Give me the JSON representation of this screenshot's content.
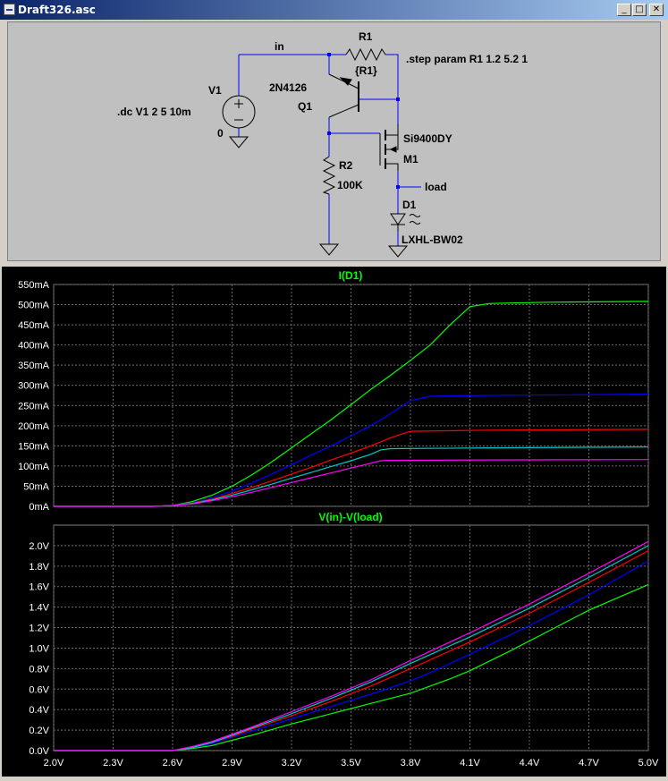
{
  "window": {
    "title": "Draft326.asc",
    "minimize_label": "_",
    "maximize_label": "□",
    "close_label": "✕"
  },
  "schematic": {
    "net_in": "in",
    "net_load": "load",
    "step_directive": ".step param R1 1.2 5.2 1",
    "dc_directive": ".dc V1 2 5 10m",
    "components": {
      "v1": {
        "name": "V1",
        "value": "0"
      },
      "q1": {
        "name": "Q1",
        "model": "2N4126"
      },
      "r1": {
        "name": "R1",
        "value": "{R1}"
      },
      "r2": {
        "name": "R2",
        "value": "100K"
      },
      "m1": {
        "name": "M1",
        "model": "Si9400DY"
      },
      "d1": {
        "name": "D1",
        "model": "LXHL-BW02"
      }
    },
    "colors": {
      "background": "#c0c0c0",
      "wire": "#0000ff",
      "symbol": "#000000"
    }
  },
  "plot_colors": [
    "#00ff00",
    "#0000ff",
    "#ff0000",
    "#00c8c8",
    "#ff00ff"
  ],
  "chart_data": [
    {
      "type": "line",
      "title": "I(D1)",
      "xlabel": "",
      "ylabel": "",
      "xlim": [
        2.0,
        5.0
      ],
      "ylim": [
        0,
        550
      ],
      "grid": true,
      "x_ticks": [
        "2.0V",
        "2.3V",
        "2.6V",
        "2.9V",
        "3.2V",
        "3.5V",
        "3.8V",
        "4.1V",
        "4.4V",
        "4.7V",
        "5.0V"
      ],
      "y_ticks": [
        "0mA",
        "50mA",
        "100mA",
        "150mA",
        "200mA",
        "250mA",
        "300mA",
        "350mA",
        "400mA",
        "450mA",
        "500mA",
        "550mA"
      ],
      "series": [
        {
          "color": "#00ff00",
          "points": [
            [
              2.0,
              0
            ],
            [
              2.5,
              0
            ],
            [
              2.6,
              2
            ],
            [
              2.7,
              12
            ],
            [
              2.8,
              28
            ],
            [
              2.9,
              50
            ],
            [
              3.0,
              78
            ],
            [
              3.1,
              110
            ],
            [
              3.2,
              145
            ],
            [
              3.3,
              180
            ],
            [
              3.4,
              215
            ],
            [
              3.5,
              252
            ],
            [
              3.6,
              290
            ],
            [
              3.7,
              325
            ],
            [
              3.8,
              362
            ],
            [
              3.9,
              400
            ],
            [
              4.0,
              450
            ],
            [
              4.1,
              495
            ],
            [
              4.2,
              503
            ],
            [
              4.5,
              506
            ],
            [
              5.0,
              508
            ]
          ]
        },
        {
          "color": "#0000ff",
          "points": [
            [
              2.0,
              0
            ],
            [
              2.5,
              0
            ],
            [
              2.6,
              2
            ],
            [
              2.7,
              9
            ],
            [
              2.8,
              22
            ],
            [
              2.9,
              38
            ],
            [
              3.0,
              58
            ],
            [
              3.1,
              80
            ],
            [
              3.2,
              103
            ],
            [
              3.3,
              127
            ],
            [
              3.4,
              150
            ],
            [
              3.5,
              175
            ],
            [
              3.6,
              200
            ],
            [
              3.7,
              230
            ],
            [
              3.8,
              262
            ],
            [
              3.9,
              273
            ],
            [
              4.2,
              275
            ],
            [
              5.0,
              278
            ]
          ]
        },
        {
          "color": "#ff0000",
          "points": [
            [
              2.0,
              0
            ],
            [
              2.5,
              0
            ],
            [
              2.6,
              2
            ],
            [
              2.7,
              8
            ],
            [
              2.8,
              18
            ],
            [
              2.9,
              32
            ],
            [
              3.0,
              47
            ],
            [
              3.1,
              63
            ],
            [
              3.2,
              80
            ],
            [
              3.3,
              97
            ],
            [
              3.4,
              115
            ],
            [
              3.5,
              132
            ],
            [
              3.6,
              150
            ],
            [
              3.7,
              170
            ],
            [
              3.8,
              186
            ],
            [
              4.2,
              189
            ],
            [
              5.0,
              191
            ]
          ]
        },
        {
          "color": "#00c8c8",
          "points": [
            [
              2.0,
              0
            ],
            [
              2.5,
              0
            ],
            [
              2.6,
              2
            ],
            [
              2.7,
              7
            ],
            [
              2.8,
              16
            ],
            [
              2.9,
              28
            ],
            [
              3.0,
              41
            ],
            [
              3.1,
              55
            ],
            [
              3.2,
              70
            ],
            [
              3.3,
              84
            ],
            [
              3.4,
              99
            ],
            [
              3.5,
              113
            ],
            [
              3.6,
              129
            ],
            [
              3.65,
              140
            ],
            [
              3.7,
              143
            ],
            [
              4.2,
              145
            ],
            [
              5.0,
              147
            ]
          ]
        },
        {
          "color": "#ff00ff",
          "points": [
            [
              2.0,
              0
            ],
            [
              2.5,
              0
            ],
            [
              2.6,
              2
            ],
            [
              2.7,
              6
            ],
            [
              2.8,
              14
            ],
            [
              2.9,
              24
            ],
            [
              3.0,
              35
            ],
            [
              3.1,
              47
            ],
            [
              3.2,
              59
            ],
            [
              3.3,
              71
            ],
            [
              3.4,
              83
            ],
            [
              3.5,
              95
            ],
            [
              3.6,
              107
            ],
            [
              3.65,
              113
            ],
            [
              3.7,
              114
            ],
            [
              4.2,
              115
            ],
            [
              5.0,
              116
            ]
          ]
        }
      ]
    },
    {
      "type": "line",
      "title": "V(in)-V(load)",
      "xlabel": "",
      "ylabel": "",
      "xlim": [
        2.0,
        5.0
      ],
      "ylim": [
        0.0,
        2.2
      ],
      "grid": true,
      "x_ticks": [
        "2.0V",
        "2.3V",
        "2.6V",
        "2.9V",
        "3.2V",
        "3.5V",
        "3.8V",
        "4.1V",
        "4.4V",
        "4.7V",
        "5.0V"
      ],
      "y_ticks": [
        "0.0V",
        "0.2V",
        "0.4V",
        "0.6V",
        "0.8V",
        "1.0V",
        "1.2V",
        "1.4V",
        "1.6V",
        "1.8V",
        "2.0V"
      ],
      "series": [
        {
          "color": "#00ff00",
          "points": [
            [
              2.0,
              0
            ],
            [
              2.6,
              0
            ],
            [
              2.7,
              0.02
            ],
            [
              2.8,
              0.05
            ],
            [
              2.9,
              0.1
            ],
            [
              3.0,
              0.15
            ],
            [
              3.2,
              0.26
            ],
            [
              3.4,
              0.36
            ],
            [
              3.6,
              0.46
            ],
            [
              3.8,
              0.56
            ],
            [
              4.0,
              0.7
            ],
            [
              4.1,
              0.78
            ],
            [
              4.3,
              0.97
            ],
            [
              4.5,
              1.17
            ],
            [
              4.7,
              1.37
            ],
            [
              5.0,
              1.62
            ]
          ]
        },
        {
          "color": "#0000ff",
          "points": [
            [
              2.0,
              0
            ],
            [
              2.6,
              0
            ],
            [
              2.7,
              0.03
            ],
            [
              2.8,
              0.07
            ],
            [
              2.9,
              0.13
            ],
            [
              3.0,
              0.19
            ],
            [
              3.2,
              0.31
            ],
            [
              3.4,
              0.43
            ],
            [
              3.6,
              0.55
            ],
            [
              3.8,
              0.68
            ],
            [
              3.9,
              0.76
            ],
            [
              4.1,
              0.94
            ],
            [
              4.4,
              1.22
            ],
            [
              4.7,
              1.52
            ],
            [
              5.0,
              1.85
            ]
          ]
        },
        {
          "color": "#ff0000",
          "points": [
            [
              2.0,
              0
            ],
            [
              2.6,
              0
            ],
            [
              2.7,
              0.03
            ],
            [
              2.8,
              0.08
            ],
            [
              2.9,
              0.14
            ],
            [
              3.0,
              0.21
            ],
            [
              3.2,
              0.34
            ],
            [
              3.4,
              0.48
            ],
            [
              3.6,
              0.63
            ],
            [
              3.8,
              0.8
            ],
            [
              4.1,
              1.06
            ],
            [
              4.4,
              1.34
            ],
            [
              4.7,
              1.64
            ],
            [
              5.0,
              1.95
            ]
          ]
        },
        {
          "color": "#00c8c8",
          "points": [
            [
              2.0,
              0
            ],
            [
              2.6,
              0
            ],
            [
              2.7,
              0.03
            ],
            [
              2.8,
              0.08
            ],
            [
              2.9,
              0.15
            ],
            [
              3.0,
              0.22
            ],
            [
              3.2,
              0.36
            ],
            [
              3.4,
              0.51
            ],
            [
              3.6,
              0.67
            ],
            [
              3.8,
              0.85
            ],
            [
              4.1,
              1.11
            ],
            [
              4.4,
              1.39
            ],
            [
              4.7,
              1.69
            ],
            [
              5.0,
              2.0
            ]
          ]
        },
        {
          "color": "#ff00ff",
          "points": [
            [
              2.0,
              0
            ],
            [
              2.6,
              0
            ],
            [
              2.7,
              0.04
            ],
            [
              2.8,
              0.09
            ],
            [
              2.9,
              0.16
            ],
            [
              3.0,
              0.23
            ],
            [
              3.2,
              0.38
            ],
            [
              3.4,
              0.53
            ],
            [
              3.6,
              0.69
            ],
            [
              3.8,
              0.88
            ],
            [
              4.1,
              1.15
            ],
            [
              4.4,
              1.43
            ],
            [
              4.7,
              1.73
            ],
            [
              5.0,
              2.04
            ]
          ]
        }
      ]
    }
  ]
}
